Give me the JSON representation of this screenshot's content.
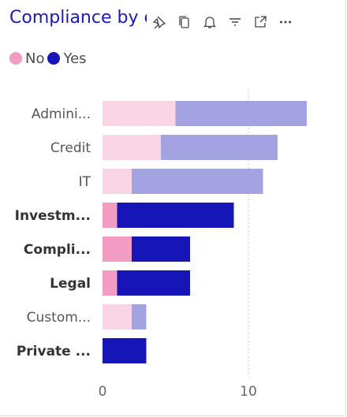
{
  "header": {
    "title": "Compliance by e",
    "icons": [
      "pin-icon",
      "copy-icon",
      "bell-icon",
      "filter-icon",
      "focus-mode-icon",
      "more-options-icon"
    ]
  },
  "colors": {
    "no": "#f29cc3",
    "yes": "#1515b8",
    "no_faded": "#f9d5e6",
    "yes_faded": "#a3a3e2"
  },
  "chart_data": {
    "type": "bar",
    "orientation": "horizontal",
    "stacked": true,
    "categories": [
      "Admini...",
      "Credit",
      "IT",
      "Investm...",
      "Compli...",
      "Legal",
      "Custom...",
      "Private ..."
    ],
    "highlighted": [
      false,
      false,
      false,
      true,
      true,
      true,
      false,
      true
    ],
    "series": [
      {
        "name": "No",
        "values": [
          5,
          4,
          2,
          1,
          2,
          1,
          2,
          0
        ]
      },
      {
        "name": "Yes",
        "values": [
          9,
          8,
          9,
          8,
          4,
          5,
          1,
          3
        ]
      }
    ],
    "xlim": [
      0,
      15
    ],
    "xticks": [
      0,
      10
    ],
    "grid": true,
    "legend_position": "top-left",
    "title": "Compliance by e",
    "xlabel": "",
    "ylabel": ""
  }
}
